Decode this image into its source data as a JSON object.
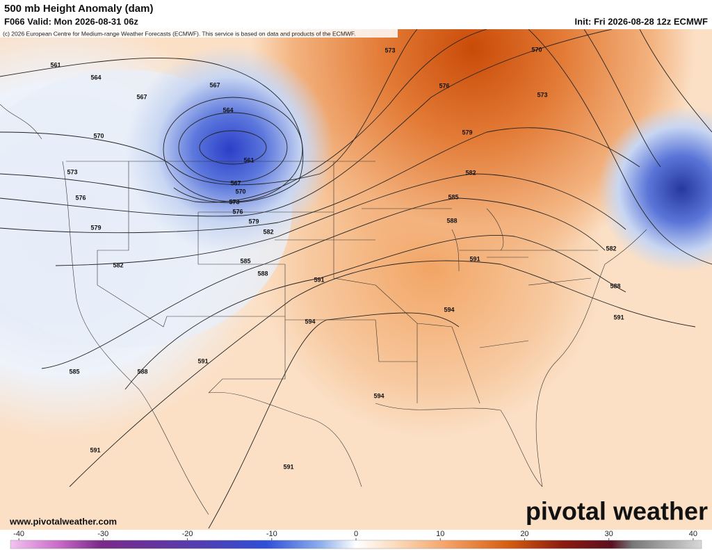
{
  "header": {
    "title": "500 mb Height Anomaly (dam)",
    "valid": "F066 Valid: Mon 2026-08-31 06z",
    "init": "Init: Fri 2026-08-28 12z ECMWF",
    "copyright": "(c) 2026 European Centre for Medium-range Weather Forecasts (ECMWF). This service is based on data and products of the ECMWF."
  },
  "contour_labels": [
    561,
    564,
    567,
    570,
    573,
    576,
    579,
    582,
    585,
    588,
    591,
    567,
    564,
    561,
    567,
    570,
    573,
    576,
    579,
    582,
    585,
    588,
    591,
    594,
    591,
    594,
    591,
    573,
    570,
    576,
    573,
    579,
    582,
    585,
    588,
    591,
    594,
    582,
    588,
    591
  ],
  "footer": {
    "website": "www.pivotalweather.com",
    "logo": "pivotal weather"
  },
  "colorbar": {
    "ticks": [
      -40,
      -30,
      -20,
      -10,
      0,
      10,
      20,
      30,
      40
    ],
    "lim": [
      -41,
      41
    ]
  }
}
